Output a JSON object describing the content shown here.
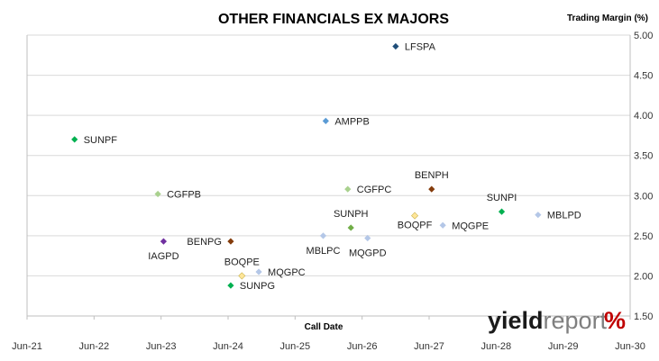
{
  "chart_data": {
    "type": "scatter",
    "title": "OTHER FINANCIALS EX MAJORS",
    "xlabel": "Call Date",
    "ylabel": "Trading Margin (%)",
    "xlim": [
      "2021-06-01",
      "2030-06-01"
    ],
    "ylim": [
      1.5,
      5.0
    ],
    "x_ticks": [
      "Jun-21",
      "Jun-22",
      "Jun-23",
      "Jun-24",
      "Jun-25",
      "Jun-26",
      "Jun-27",
      "Jun-28",
      "Jun-29",
      "Jun-30"
    ],
    "y_ticks": [
      "1.50",
      "2.00",
      "2.50",
      "3.00",
      "3.50",
      "4.00",
      "4.50",
      "5.00"
    ],
    "grid": "horizontal",
    "points": [
      {
        "label": "LFSPA",
        "x": "2026-12-01",
        "y": 4.86,
        "color": "#1f4e79",
        "label_pos": "right"
      },
      {
        "label": "AMPPB",
        "x": "2025-11-15",
        "y": 3.93,
        "color": "#5b9bd5",
        "label_pos": "right"
      },
      {
        "label": "SUNPF",
        "x": "2022-02-15",
        "y": 3.7,
        "color": "#00b050",
        "label_pos": "right"
      },
      {
        "label": "CGFPB",
        "x": "2023-05-15",
        "y": 3.02,
        "color": "#a9d18e",
        "label_pos": "right"
      },
      {
        "label": "CGFPC",
        "x": "2026-03-15",
        "y": 3.08,
        "color": "#a9d18e",
        "label_pos": "right"
      },
      {
        "label": "BENPH",
        "x": "2027-06-15",
        "y": 3.08,
        "color": "#843c0c",
        "label_pos": "top"
      },
      {
        "label": "SUNPI",
        "x": "2028-07-01",
        "y": 2.8,
        "color": "#00b050",
        "label_pos": "top"
      },
      {
        "label": "MBLPD",
        "x": "2029-01-15",
        "y": 2.76,
        "color": "#b4c7e7",
        "label_pos": "right"
      },
      {
        "label": "SUNPH",
        "x": "2026-04-01",
        "y": 2.6,
        "color": "#70ad47",
        "label_pos": "top"
      },
      {
        "label": "BOQPF",
        "x": "2027-03-15",
        "y": 2.75,
        "color": "#ffe699",
        "label_pos": "below-left"
      },
      {
        "label": "MQGPE",
        "x": "2027-08-15",
        "y": 2.63,
        "color": "#b4c7e7",
        "label_pos": "right"
      },
      {
        "label": "MBLPC",
        "x": "2025-11-01",
        "y": 2.5,
        "color": "#b4c7e7",
        "label_pos": "below"
      },
      {
        "label": "MQGPD",
        "x": "2026-07-01",
        "y": 2.47,
        "color": "#b4c7e7",
        "label_pos": "below"
      },
      {
        "label": "IAGPD",
        "x": "2023-06-15",
        "y": 2.43,
        "color": "#7030a0",
        "label_pos": "below"
      },
      {
        "label": "BENPG",
        "x": "2024-06-15",
        "y": 2.43,
        "color": "#843c0c",
        "label_pos": "left"
      },
      {
        "label": "BOQPE",
        "x": "2024-08-15",
        "y": 2.0,
        "color": "#ffe699",
        "label_pos": "top"
      },
      {
        "label": "MQGPC",
        "x": "2024-11-15",
        "y": 2.05,
        "color": "#b4c7e7",
        "label_pos": "right"
      },
      {
        "label": "SUNPG",
        "x": "2024-06-15",
        "y": 1.88,
        "color": "#00b050",
        "label_pos": "right"
      }
    ]
  },
  "branding": {
    "logo_main": "yield",
    "logo_second": "report",
    "logo_symbol": "%",
    "symbol_color": "#c00000",
    "second_color": "#7f7f7f"
  }
}
